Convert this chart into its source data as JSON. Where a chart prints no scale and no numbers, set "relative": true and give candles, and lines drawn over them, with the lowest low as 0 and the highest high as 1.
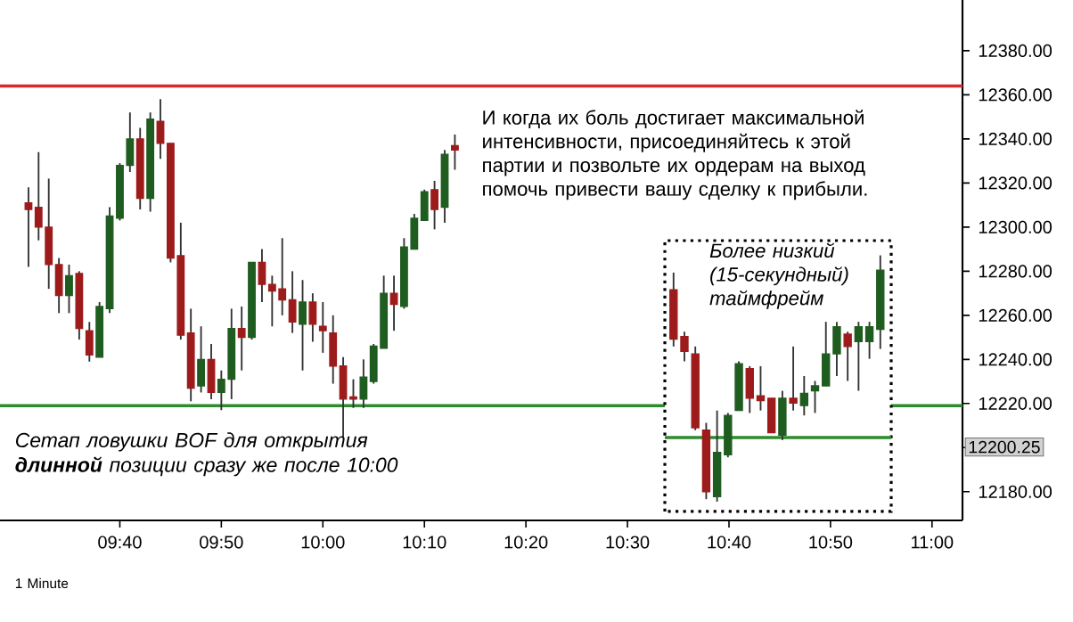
{
  "chart_data": [
    {
      "type": "candlestick",
      "x": [
        9.5167,
        9.5333,
        9.55,
        9.5667,
        9.5833,
        9.6,
        9.6167,
        9.6333,
        9.65,
        9.6667,
        9.6833,
        9.7,
        9.7167,
        9.7333,
        9.75,
        9.7667,
        9.7833,
        9.8,
        9.8167,
        9.8333,
        9.85,
        9.8667,
        9.8833,
        9.9,
        9.9167,
        9.9333,
        9.95,
        9.9667,
        9.9833,
        10,
        10.0167,
        10.0333,
        10.05,
        10.0667,
        10.0833,
        10.1,
        10.1167,
        10.1333,
        10.15,
        10.1667,
        10.1833,
        10.2,
        10.2167
      ],
      "ohlc": [
        [
          12311,
          12318,
          12282,
          12308
        ],
        [
          12309,
          12334,
          12294,
          12300
        ],
        [
          12300,
          12322,
          12272,
          12283
        ],
        [
          12283,
          12286,
          12261,
          12269
        ],
        [
          12269,
          12283,
          12261,
          12278
        ],
        [
          12279,
          12280,
          12249,
          12254
        ],
        [
          12253,
          12257,
          12239,
          12242
        ],
        [
          12241,
          12266,
          12241,
          12264
        ],
        [
          12263,
          12309,
          12261,
          12305
        ],
        [
          12304,
          12329,
          12303,
          12328
        ],
        [
          12328,
          12352,
          12325,
          12340
        ],
        [
          12340,
          12345,
          12308,
          12313
        ],
        [
          12313,
          12352,
          12307,
          12349
        ],
        [
          12348,
          12358,
          12331,
          12338
        ],
        [
          12338,
          12338,
          12284,
          12286
        ],
        [
          12287,
          12302,
          12249,
          12251
        ],
        [
          12252,
          12263,
          12221,
          12227
        ],
        [
          12228,
          12255,
          12225,
          12240
        ],
        [
          12240,
          12247,
          12222,
          12225
        ],
        [
          12225,
          12235,
          12217,
          12231
        ],
        [
          12231,
          12263,
          12222,
          12254
        ],
        [
          12254,
          12264,
          12235,
          12250
        ],
        [
          12250,
          12284,
          12249,
          12284
        ],
        [
          12284,
          12290,
          12266,
          12274
        ],
        [
          12274,
          12278,
          12255,
          12271
        ],
        [
          12272,
          12295,
          12260,
          12267
        ],
        [
          12267,
          12280,
          12252,
          12257
        ],
        [
          12256,
          12276,
          12235,
          12266
        ],
        [
          12266,
          12270,
          12248,
          12256
        ],
        [
          12255,
          12266,
          12243,
          12253
        ],
        [
          12252,
          12260,
          12229,
          12237
        ],
        [
          12237,
          12241,
          12205,
          12222
        ],
        [
          12223,
          12231,
          12218,
          12222
        ],
        [
          12222,
          12240,
          12218,
          12232
        ],
        [
          12230,
          12247,
          12229,
          12246
        ],
        [
          12245,
          12278,
          12245,
          12270
        ],
        [
          12270,
          12278,
          12253,
          12265
        ],
        [
          12264,
          12295,
          12263,
          12291
        ],
        [
          12290,
          12306,
          12290,
          12304
        ],
        [
          12303,
          12317,
          12303,
          12316
        ],
        [
          12317,
          12321,
          12299,
          12308
        ],
        [
          12309,
          12335,
          12302,
          12333
        ],
        [
          12337,
          12342,
          12326,
          12335
        ]
      ],
      "colors": [
        "#9e1b1b",
        "#9e1b1b",
        "#9e1b1b",
        "#9e1b1b",
        "#1f5c1f",
        "#9e1b1b",
        "#9e1b1b",
        "#1f5c1f",
        "#1f5c1f",
        "#1f5c1f",
        "#1f5c1f",
        "#9e1b1b",
        "#1f5c1f",
        "#9e1b1b",
        "#9e1b1b",
        "#9e1b1b",
        "#9e1b1b",
        "#1f5c1f",
        "#9e1b1b",
        "#1f5c1f",
        "#1f5c1f",
        "#9e1b1b",
        "#1f5c1f",
        "#9e1b1b",
        "#9e1b1b",
        "#9e1b1b",
        "#9e1b1b",
        "#1f5c1f",
        "#9e1b1b",
        "#9e1b1b",
        "#9e1b1b",
        "#9e1b1b",
        "#9e1b1b",
        "#1f5c1f",
        "#1f5c1f",
        "#1f5c1f",
        "#9e1b1b",
        "#1f5c1f",
        "#1f5c1f",
        "#1f5c1f",
        "#9e1b1b",
        "#1f5c1f",
        "#9e1b1b"
      ],
      "xlim": [
        9.47,
        11.05
      ],
      "xticks": [
        {
          "value": 9.6667,
          "label": "09:40"
        },
        {
          "value": 9.8333,
          "label": "09:50"
        },
        {
          "value": 10,
          "label": "10:00"
        },
        {
          "value": 10.1667,
          "label": "10:10"
        },
        {
          "value": 10.3333,
          "label": "10:20"
        },
        {
          "value": 10.5,
          "label": "10:30"
        },
        {
          "value": 10.6667,
          "label": "10:40"
        },
        {
          "value": 10.8333,
          "label": "10:50"
        },
        {
          "value": 11,
          "label": "11:00"
        }
      ],
      "ylim": [
        12167,
        12403
      ],
      "yticks": [
        {
          "value": 12180,
          "label": "12180.00"
        },
        {
          "value": 12200,
          "label": null
        },
        {
          "value": 12220,
          "label": "12220.00"
        },
        {
          "value": 12240,
          "label": "12240.00"
        },
        {
          "value": 12260,
          "label": "12260.00"
        },
        {
          "value": 12280,
          "label": "12280.00"
        },
        {
          "value": 12300,
          "label": "12300.00"
        },
        {
          "value": 12320,
          "label": "12320.00"
        },
        {
          "value": 12340,
          "label": "12340.00"
        },
        {
          "value": 12360,
          "label": "12360.00"
        },
        {
          "value": 12380,
          "label": "12380.00"
        }
      ],
      "ref_lines": [
        {
          "axis": "y",
          "value": 12364,
          "color": "#d42a2a"
        },
        {
          "axis": "y",
          "value": 12219,
          "color": "#2e8b2e"
        }
      ],
      "annotations": [
        "И когда их боль достигает максимальной интенсивности, присоединяйтесь к этой партии и позвольте их ордерам на выход помочь привести вашу сделку к прибыли.",
        "Сетап ловушки BOF для открытия **длинной** позиции сразу же после 10:00",
        "1 Minute",
        "12200.25"
      ]
    },
    {
      "type": "candlestick",
      "title": "Более низкий (15-секундный) таймфрейм",
      "relative": true,
      "categories": [
        null,
        null,
        null,
        null,
        null,
        null,
        null,
        null,
        null,
        null,
        null,
        null,
        null,
        null,
        null,
        null,
        null,
        null,
        null,
        null
      ],
      "ohlc": [
        [
          0.86,
          0.93,
          0.63,
          0.66
        ],
        [
          0.67,
          0.69,
          0.57,
          0.61
        ],
        [
          0.6,
          0.63,
          0.29,
          0.3
        ],
        [
          0.29,
          0.32,
          0.01,
          0.04
        ],
        [
          0.02,
          0.37,
          0,
          0.2
        ],
        [
          0.19,
          0.36,
          0.18,
          0.35
        ],
        [
          0.37,
          0.57,
          0.37,
          0.56
        ],
        [
          0.54,
          0.55,
          0.36,
          0.42
        ],
        [
          0.43,
          0.55,
          0.37,
          0.41
        ],
        [
          0.42,
          0.42,
          0.28,
          0.28
        ],
        [
          0.27,
          0.45,
          0.25,
          0.42
        ],
        [
          0.42,
          0.63,
          0.37,
          0.4
        ],
        [
          0.39,
          0.51,
          0.35,
          0.44
        ],
        [
          0.45,
          0.49,
          0.36,
          0.47
        ],
        [
          0.47,
          0.73,
          0.47,
          0.6
        ],
        [
          0.6,
          0.73,
          0.51,
          0.71
        ],
        [
          0.68,
          0.69,
          0.49,
          0.63
        ],
        [
          0.65,
          0.73,
          0.45,
          0.71
        ],
        [
          0.65,
          0.73,
          0.58,
          0.71
        ],
        [
          0.7,
          1,
          0.62,
          0.94
        ]
      ],
      "colors": [
        "#9e1b1b",
        "#9e1b1b",
        "#9e1b1b",
        "#9e1b1b",
        "#1f5c1f",
        "#1f5c1f",
        "#1f5c1f",
        "#9e1b1b",
        "#9e1b1b",
        "#9e1b1b",
        "#1f5c1f",
        "#9e1b1b",
        "#1f5c1f",
        "#1f5c1f",
        "#1f5c1f",
        "#1f5c1f",
        "#9e1b1b",
        "#1f5c1f",
        "#1f5c1f",
        "#1f5c1f"
      ],
      "ref_lines": [
        {
          "axis": "y",
          "value": 0.26,
          "color": "#2e8b2e"
        }
      ]
    }
  ]
}
